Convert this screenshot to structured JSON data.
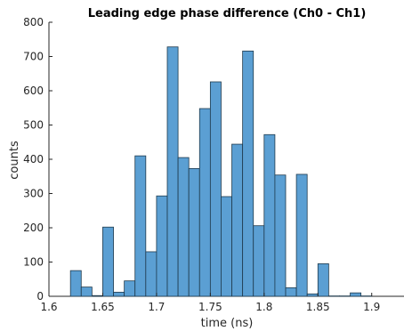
{
  "chart_data": {
    "type": "bar",
    "title": "Leading edge phase difference (Ch0 - Ch1)",
    "xlabel": "time (ns)",
    "ylabel": "counts",
    "xlim": [
      1.6,
      1.93
    ],
    "ylim": [
      0,
      800
    ],
    "xticks": [
      "1.6",
      "1.65",
      "1.7",
      "1.75",
      "1.8",
      "1.85",
      "1.9"
    ],
    "yticks": [
      "0",
      "100",
      "200",
      "300",
      "400",
      "500",
      "600",
      "700",
      "800"
    ],
    "bin_width": 0.01,
    "bins": [
      {
        "x0": 1.62,
        "count": 75
      },
      {
        "x0": 1.63,
        "count": 27
      },
      {
        "x0": 1.64,
        "count": 2
      },
      {
        "x0": 1.65,
        "count": 202
      },
      {
        "x0": 1.66,
        "count": 12
      },
      {
        "x0": 1.67,
        "count": 45
      },
      {
        "x0": 1.68,
        "count": 410
      },
      {
        "x0": 1.69,
        "count": 130
      },
      {
        "x0": 1.7,
        "count": 293
      },
      {
        "x0": 1.71,
        "count": 728
      },
      {
        "x0": 1.72,
        "count": 405
      },
      {
        "x0": 1.73,
        "count": 373
      },
      {
        "x0": 1.74,
        "count": 548
      },
      {
        "x0": 1.75,
        "count": 626
      },
      {
        "x0": 1.76,
        "count": 291
      },
      {
        "x0": 1.77,
        "count": 444
      },
      {
        "x0": 1.78,
        "count": 716
      },
      {
        "x0": 1.79,
        "count": 206
      },
      {
        "x0": 1.8,
        "count": 472
      },
      {
        "x0": 1.81,
        "count": 354
      },
      {
        "x0": 1.82,
        "count": 25
      },
      {
        "x0": 1.83,
        "count": 356
      },
      {
        "x0": 1.84,
        "count": 7
      },
      {
        "x0": 1.85,
        "count": 95
      },
      {
        "x0": 1.86,
        "count": 1
      },
      {
        "x0": 1.87,
        "count": 1
      },
      {
        "x0": 1.88,
        "count": 10
      },
      {
        "x0": 1.89,
        "count": 1
      }
    ],
    "bar_color": "#5b9fd3",
    "bar_edge_color": "#1f3a4d",
    "grid": false,
    "legend": "none"
  }
}
